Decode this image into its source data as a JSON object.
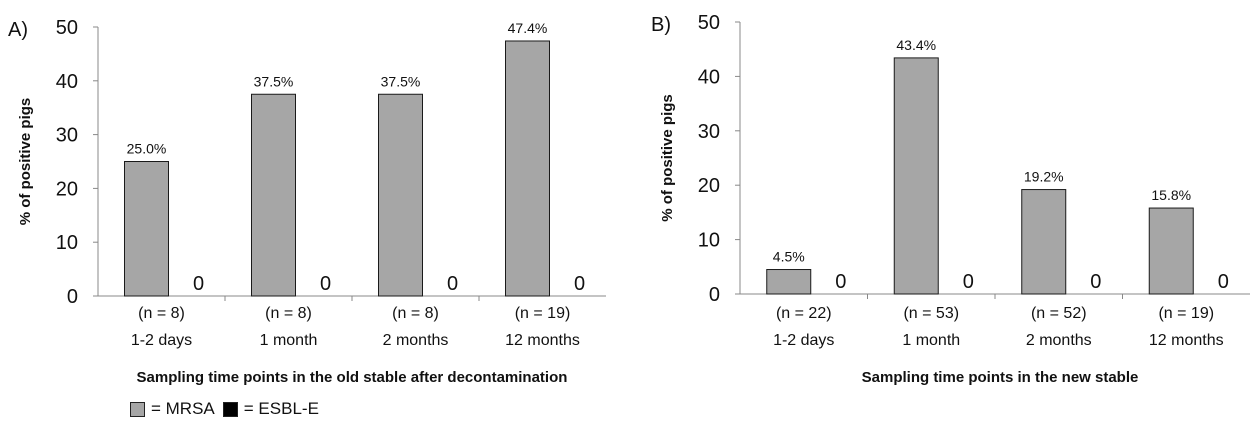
{
  "colors": {
    "mrsa": "#a6a6a6",
    "esbl": "#000000",
    "axis": "#888888",
    "text": "#111111"
  },
  "legend": {
    "mrsa_label": "= MRSA",
    "esbl_label": "= ESBL-E"
  },
  "chart_data": [
    {
      "type": "bar",
      "panel_label": "A)",
      "xlabel": "Sampling time points in the old stable after decontamination",
      "ylabel": "% of positive pigs",
      "ylim": [
        0,
        50
      ],
      "yticks": [
        0,
        10,
        20,
        30,
        40,
        50
      ],
      "grid": false,
      "categories": [
        "1-2 days",
        "1 month",
        "2 months",
        "12 months"
      ],
      "n_labels": [
        "(n = 8)",
        "(n = 8)",
        "(n = 8)",
        "(n = 19)"
      ],
      "series": [
        {
          "name": "MRSA",
          "values": [
            25.0,
            37.5,
            37.5,
            47.4
          ],
          "labels": [
            "25.0%",
            "37.5%",
            "37.5%",
            "47.4%"
          ]
        },
        {
          "name": "ESBL-E",
          "values": [
            0,
            0,
            0,
            0
          ],
          "labels": [
            "0",
            "0",
            "0",
            "0"
          ]
        }
      ]
    },
    {
      "type": "bar",
      "panel_label": "B)",
      "xlabel": "Sampling time points in the new stable",
      "ylabel": "% of positive pigs",
      "ylim": [
        0,
        50
      ],
      "yticks": [
        0,
        10,
        20,
        30,
        40,
        50
      ],
      "grid": false,
      "categories": [
        "1-2 days",
        "1 month",
        "2 months",
        "12 months"
      ],
      "n_labels": [
        "(n = 22)",
        "(n = 53)",
        "(n = 52)",
        "(n = 19)"
      ],
      "series": [
        {
          "name": "MRSA",
          "values": [
            4.5,
            43.4,
            19.2,
            15.8
          ],
          "labels": [
            "4.5%",
            "43.4%",
            "19.2%",
            "15.8%"
          ]
        },
        {
          "name": "ESBL-E",
          "values": [
            0,
            0,
            0,
            0
          ],
          "labels": [
            "0",
            "0",
            "0",
            "0"
          ]
        }
      ]
    }
  ]
}
